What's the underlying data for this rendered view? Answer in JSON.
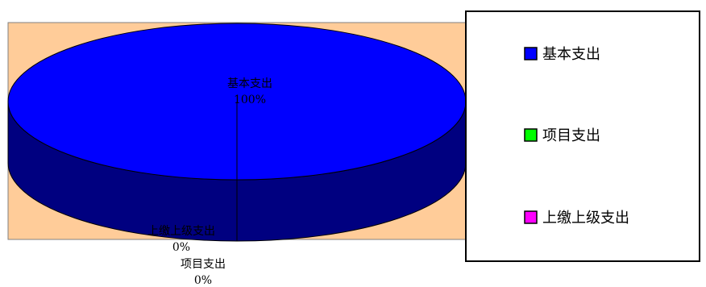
{
  "chart_data": {
    "type": "pie",
    "three_d": true,
    "categories": [
      "基本支出",
      "项目支出",
      "上缴上级支出"
    ],
    "values": [
      100,
      0,
      0
    ],
    "labels": [
      {
        "name": "基本支出",
        "pct": "100%"
      },
      {
        "name": "项目支出",
        "pct": "0%"
      },
      {
        "name": "上缴上级支出",
        "pct": "0%"
      }
    ],
    "colors": [
      "#0000ff",
      "#00ff00",
      "#ff00ff"
    ],
    "side_color": "#000080",
    "plot_background": "#ffcc99",
    "legend_position": "right"
  }
}
